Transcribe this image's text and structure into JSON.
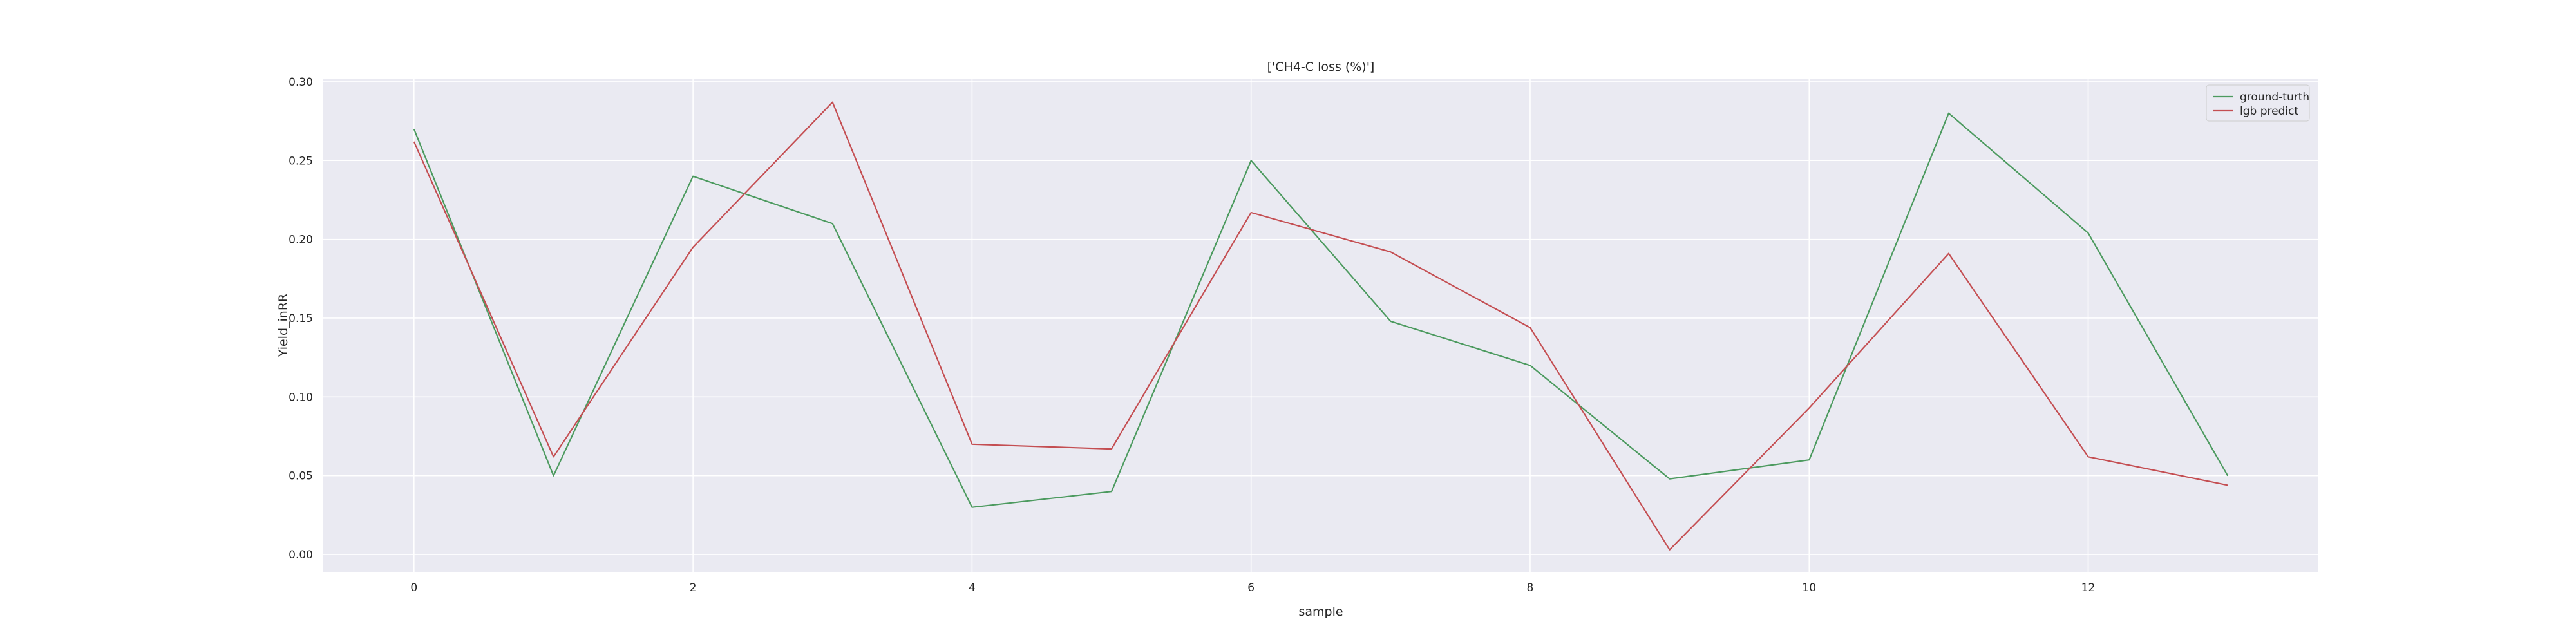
{
  "chart_data": {
    "type": "line",
    "title": "['CH4-C loss (%)']",
    "xlabel": "sample",
    "ylabel": "Yield_inRR",
    "x": [
      0,
      1,
      2,
      3,
      4,
      5,
      6,
      7,
      8,
      9,
      10,
      11,
      12,
      13
    ],
    "xlim": [
      -0.65,
      13.65
    ],
    "ylim": [
      -0.011,
      0.302
    ],
    "xticks": [
      0,
      2,
      4,
      6,
      8,
      10,
      12
    ],
    "yticks": [
      0.0,
      0.05,
      0.1,
      0.15,
      0.2,
      0.25,
      0.3
    ],
    "ytick_labels": [
      "0.00",
      "0.05",
      "0.10",
      "0.15",
      "0.20",
      "0.25",
      "0.30"
    ],
    "grid": true,
    "legend_position": "top-right",
    "series": [
      {
        "name": "ground-turth",
        "color": "#4c9a5f",
        "values": [
          0.27,
          0.05,
          0.24,
          0.21,
          0.03,
          0.04,
          0.25,
          0.148,
          0.12,
          0.048,
          0.06,
          0.28,
          0.204,
          0.05
        ]
      },
      {
        "name": "lgb predict",
        "color": "#c44e52",
        "values": [
          0.262,
          0.062,
          0.195,
          0.287,
          0.07,
          0.067,
          0.217,
          0.192,
          0.144,
          0.003,
          0.093,
          0.191,
          0.062,
          0.044
        ]
      }
    ]
  }
}
